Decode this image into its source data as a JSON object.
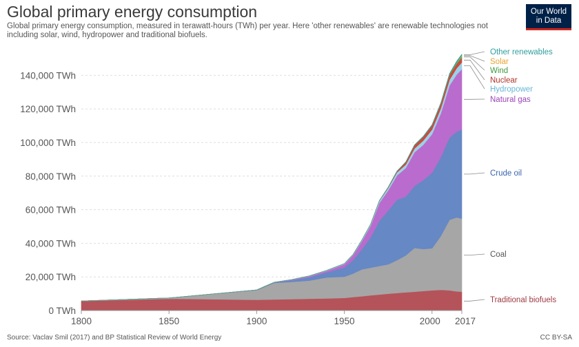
{
  "header": {
    "title": "Global primary energy consumption",
    "subtitle": "Global primary energy consumption, measured in terawatt-hours (TWh) per year. Here 'other renewables' are renewable technologies not including solar, wind, hydropower and traditional biofuels.",
    "logo_line1": "Our World",
    "logo_line2": "in Data"
  },
  "footer": {
    "source": "Source: Vaclav Smil (2017) and BP Statistical Review of World Energy",
    "license": "CC BY-SA"
  },
  "chart_data": {
    "type": "area",
    "stacked": true,
    "title": "Global primary energy consumption",
    "xlabel": "",
    "ylabel": "",
    "xlim": [
      1800,
      2017
    ],
    "ylim": [
      0,
      150000
    ],
    "x_ticks": [
      "1800",
      "1850",
      "1900",
      "1950",
      "2000",
      "2017"
    ],
    "y_ticks": [
      "0 TWh",
      "20,000 TWh",
      "40,000 TWh",
      "60,000 TWh",
      "80,000 TWh",
      "100,000 TWh",
      "120,000 TWh",
      "140,000 TWh"
    ],
    "y_tick_values": [
      0,
      20000,
      40000,
      60000,
      80000,
      100000,
      120000,
      140000
    ],
    "grid": true,
    "legend_position": "right, labels at series ends",
    "x": [
      1800,
      1850,
      1900,
      1910,
      1920,
      1930,
      1940,
      1950,
      1955,
      1960,
      1965,
      1970,
      1975,
      1980,
      1985,
      1990,
      1995,
      2000,
      2005,
      2010,
      2014,
      2017
    ],
    "series": [
      {
        "name": "Traditional biofuels",
        "color": "#b5535a",
        "values": [
          5600,
          7000,
          6400,
          6600,
          6800,
          7000,
          7200,
          7500,
          8000,
          8500,
          9000,
          9500,
          10000,
          10400,
          10800,
          11200,
          11600,
          12000,
          12300,
          12000,
          11400,
          11200
        ]
      },
      {
        "name": "Coal",
        "color": "#a6a6a6",
        "values": [
          100,
          500,
          5700,
          9800,
          10200,
          10800,
          12500,
          12600,
          14000,
          16000,
          16500,
          17000,
          17500,
          19500,
          22000,
          26000,
          25000,
          25000,
          32000,
          42000,
          44000,
          43500
        ]
      },
      {
        "name": "Crude oil",
        "color": "#6688c4",
        "values": [
          0,
          0,
          200,
          300,
          1000,
          2000,
          3000,
          5500,
          8000,
          12000,
          18000,
          27000,
          32000,
          36000,
          35000,
          37000,
          41000,
          45000,
          47000,
          49000,
          51000,
          53000
        ]
      },
      {
        "name": "Natural gas",
        "color": "#b96ccd",
        "values": [
          0,
          0,
          0,
          100,
          300,
          600,
          900,
          2000,
          3000,
          4800,
          7000,
          10500,
          12000,
          14500,
          17000,
          20000,
          21000,
          23000,
          26000,
          31000,
          34000,
          36000
        ]
      },
      {
        "name": "Hydropower",
        "color": "#9bd1e6",
        "values": [
          0,
          0,
          0,
          50,
          100,
          200,
          300,
          350,
          450,
          700,
          900,
          1200,
          1500,
          1800,
          2000,
          2200,
          2500,
          2700,
          3000,
          3400,
          3800,
          4000
        ]
      },
      {
        "name": "Nuclear",
        "color": "#cc4b3c",
        "values": [
          0,
          0,
          0,
          0,
          0,
          0,
          0,
          0,
          0,
          0,
          50,
          200,
          400,
          700,
          1500,
          2000,
          2300,
          2600,
          2800,
          2800,
          2600,
          2700
        ]
      },
      {
        "name": "Wind",
        "color": "#5cae5c",
        "values": [
          0,
          0,
          0,
          0,
          0,
          0,
          0,
          0,
          0,
          0,
          0,
          0,
          0,
          0,
          0,
          10,
          20,
          50,
          150,
          400,
          750,
          1100
        ]
      },
      {
        "name": "Solar",
        "color": "#e8b64e",
        "values": [
          0,
          0,
          0,
          0,
          0,
          0,
          0,
          0,
          0,
          0,
          0,
          0,
          0,
          0,
          0,
          0,
          0,
          0,
          10,
          50,
          200,
          440
        ]
      },
      {
        "name": "Other renewables",
        "color": "#2e9d9d",
        "values": [
          0,
          0,
          0,
          0,
          0,
          0,
          0,
          0,
          0,
          0,
          0,
          0,
          50,
          100,
          150,
          200,
          250,
          300,
          350,
          450,
          550,
          600
        ]
      }
    ],
    "series_label_colors": {
      "Other renewables": "#2e9d9d",
      "Solar": "#e8a32e",
      "Wind": "#3d9a3d",
      "Nuclear": "#b0332a",
      "Hydropower": "#66b6d6",
      "Natural gas": "#9b44b6",
      "Crude oil": "#3a64ad",
      "Coal": "#555555",
      "Traditional biofuels": "#9e3a42"
    }
  }
}
